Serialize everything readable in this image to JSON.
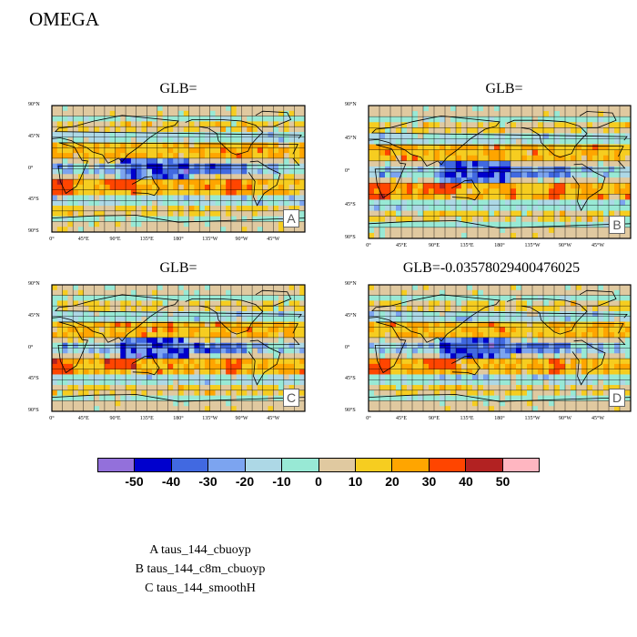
{
  "title": "OMEGA",
  "chart_data": {
    "type": "heatmap",
    "variable": "OMEGA",
    "panels": [
      {
        "id": "A",
        "title": "GLB="
      },
      {
        "id": "B",
        "title": "GLB="
      },
      {
        "id": "C",
        "title": "GLB="
      },
      {
        "id": "D",
        "title": "GLB=-0.03578029400476025"
      }
    ],
    "lat_labels": [
      "90°N",
      "45°N",
      "0°",
      "45°S",
      "90°S"
    ],
    "lon_labels": [
      "0°",
      "45°E",
      "90°E",
      "135°E",
      "180°",
      "135°W",
      "90°W",
      "45°W"
    ],
    "colorbar": {
      "levels": [
        "-50",
        "-40",
        "-30",
        "-20",
        "-10",
        "0",
        "10",
        "20",
        "30",
        "40",
        "50"
      ],
      "colors": [
        "#9370DB",
        "#0000CD",
        "#4169E1",
        "#7CA4F0",
        "#ADD8E6",
        "#98E9D5",
        "#E0C9A0",
        "#F6CD20",
        "#FFA500",
        "#FF4500",
        "#B22222",
        "#FFB6C1"
      ]
    },
    "legend": [
      "A  taus_144_cbuoyp",
      "B  taus_144_c8m_cbuoyp",
      "C  taus_144_smoothH"
    ]
  }
}
